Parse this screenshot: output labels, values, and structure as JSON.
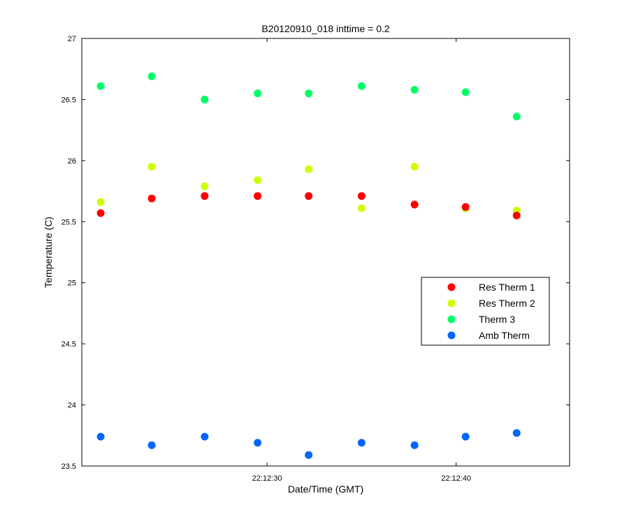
{
  "chart_data": {
    "type": "scatter",
    "title": "B20120910_018 inttime = 0.2",
    "xlabel": "Date/Time (GMT)",
    "ylabel": "Temperature (C)",
    "x_unit": "seconds after 22:12:00",
    "xlim": [
      20.2,
      46.0
    ],
    "ylim": [
      23.5,
      27
    ],
    "x_ticks": [
      {
        "value": 30,
        "label": "22:12:30"
      },
      {
        "value": 40,
        "label": "22:12:40"
      }
    ],
    "y_ticks": [
      "23.5",
      "24",
      "24.5",
      "25",
      "25.5",
      "26",
      "26.5",
      "27"
    ],
    "grid": false,
    "legend_position": "right",
    "x": [
      21.2,
      23.9,
      26.7,
      29.5,
      32.2,
      35.0,
      37.8,
      40.5,
      43.2
    ],
    "series": [
      {
        "name": "Res Therm 1",
        "color": "#ff0000",
        "values": [
          25.57,
          25.69,
          25.71,
          25.71,
          25.71,
          25.71,
          25.64,
          25.62,
          25.55
        ]
      },
      {
        "name": "Res Therm 2",
        "color": "#ccff00",
        "values": [
          25.66,
          25.95,
          25.79,
          25.84,
          25.93,
          25.61,
          25.95,
          25.61,
          25.59
        ]
      },
      {
        "name": "Therm 3",
        "color": "#00ff66",
        "values": [
          26.61,
          26.69,
          26.5,
          26.55,
          26.55,
          26.61,
          26.58,
          26.56,
          26.36
        ]
      },
      {
        "name": "Amb Therm",
        "color": "#0066ff",
        "values": [
          23.74,
          23.67,
          23.74,
          23.69,
          23.59,
          23.69,
          23.67,
          23.74,
          23.77
        ]
      }
    ]
  }
}
